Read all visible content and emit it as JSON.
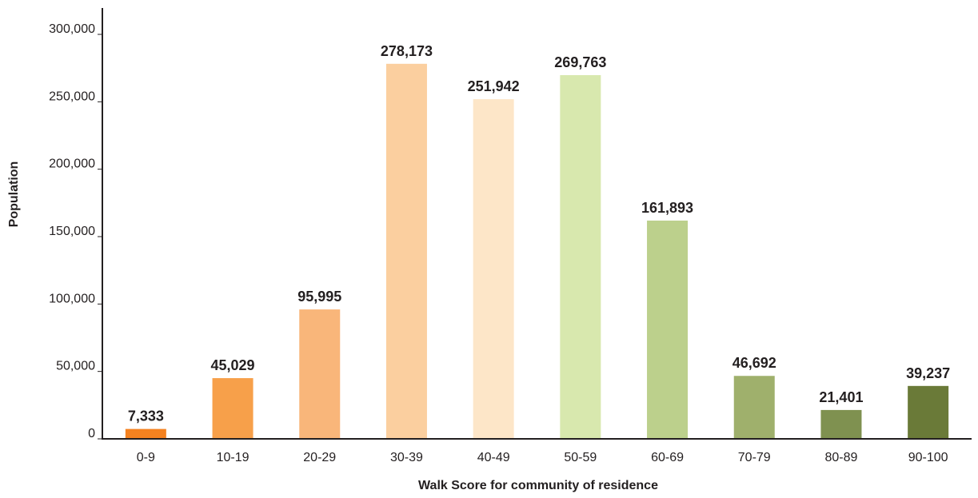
{
  "chart_data": {
    "type": "bar",
    "categories": [
      "0-9",
      "10-19",
      "20-29",
      "30-39",
      "40-49",
      "50-59",
      "60-69",
      "70-79",
      "80-89",
      "90-100"
    ],
    "values": [
      7333,
      45029,
      95995,
      278173,
      251942,
      269763,
      161893,
      46692,
      21401,
      39237
    ],
    "data_labels": [
      "7,333",
      "45,029",
      "95,995",
      "278,173",
      "251,942",
      "269,763",
      "161,893",
      "46,692",
      "21,401",
      "39,237"
    ],
    "bar_colors": [
      "#f58220",
      "#f7a04a",
      "#f9b67a",
      "#fbcf9f",
      "#fde6c8",
      "#d8e8ae",
      "#bcd08c",
      "#9fb06c",
      "#7f9150",
      "#6a7a38"
    ],
    "title": "",
    "xlabel": "Walk Score for community of residence",
    "ylabel": "Population",
    "ylim": [
      0,
      300000
    ],
    "yticks": [
      0,
      50000,
      100000,
      150000,
      200000,
      250000,
      300000
    ],
    "ytick_labels": [
      "0",
      "50,000",
      "100,000",
      "150,000",
      "200,000",
      "250,000",
      "300,000"
    ],
    "grid": false,
    "legend": "none"
  }
}
